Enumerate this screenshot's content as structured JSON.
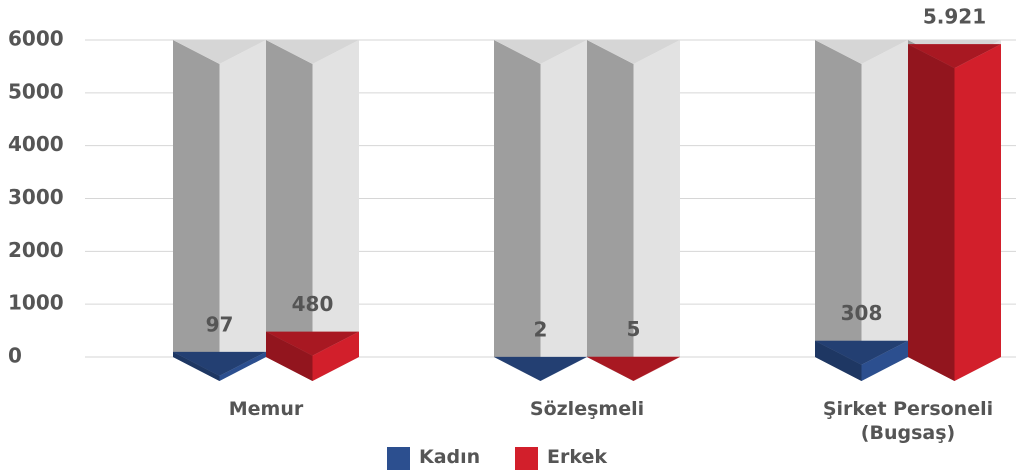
{
  "chart_data": {
    "type": "bar3d",
    "categories": [
      "Memur",
      "Sözleşmeli",
      "Şirket Personeli\n(Bugsaş)"
    ],
    "series": [
      {
        "name": "Kadın",
        "color": "#2c4f8f",
        "values": [
          97,
          2,
          308
        ]
      },
      {
        "name": "Erkek",
        "color": "#d21f2b",
        "values": [
          480,
          5,
          5921
        ],
        "value_labels": [
          "480",
          "5",
          "5.921"
        ]
      }
    ],
    "ylim": [
      0,
      6000
    ],
    "yticks": [
      0,
      1000,
      2000,
      3000,
      4000,
      5000,
      6000
    ],
    "grid": true,
    "legend": "bottom"
  }
}
